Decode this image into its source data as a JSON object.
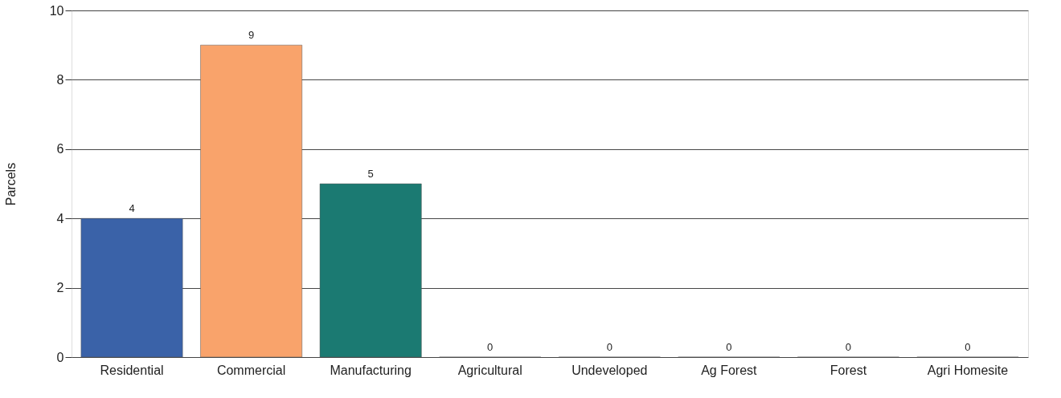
{
  "chart_data": {
    "type": "bar",
    "ylabel": "Parcels",
    "categories": [
      "Residential",
      "Commercial",
      "Manufacturing",
      "Agricultural",
      "Undeveloped",
      "Ag Forest",
      "Forest",
      "Agri Homesite"
    ],
    "values": [
      4,
      9,
      5,
      0,
      0,
      0,
      0,
      0
    ],
    "colors": [
      "#3a62a8",
      "#f9a36b",
      "#1b7a72",
      "#3a62a8",
      "#f9a36b",
      "#1b7a72",
      "#3a62a8",
      "#f9a36b"
    ],
    "ylim": [
      0,
      10
    ],
    "yticks": [
      0,
      2,
      4,
      6,
      8,
      10
    ],
    "grid": "y",
    "data_labels": true
  }
}
